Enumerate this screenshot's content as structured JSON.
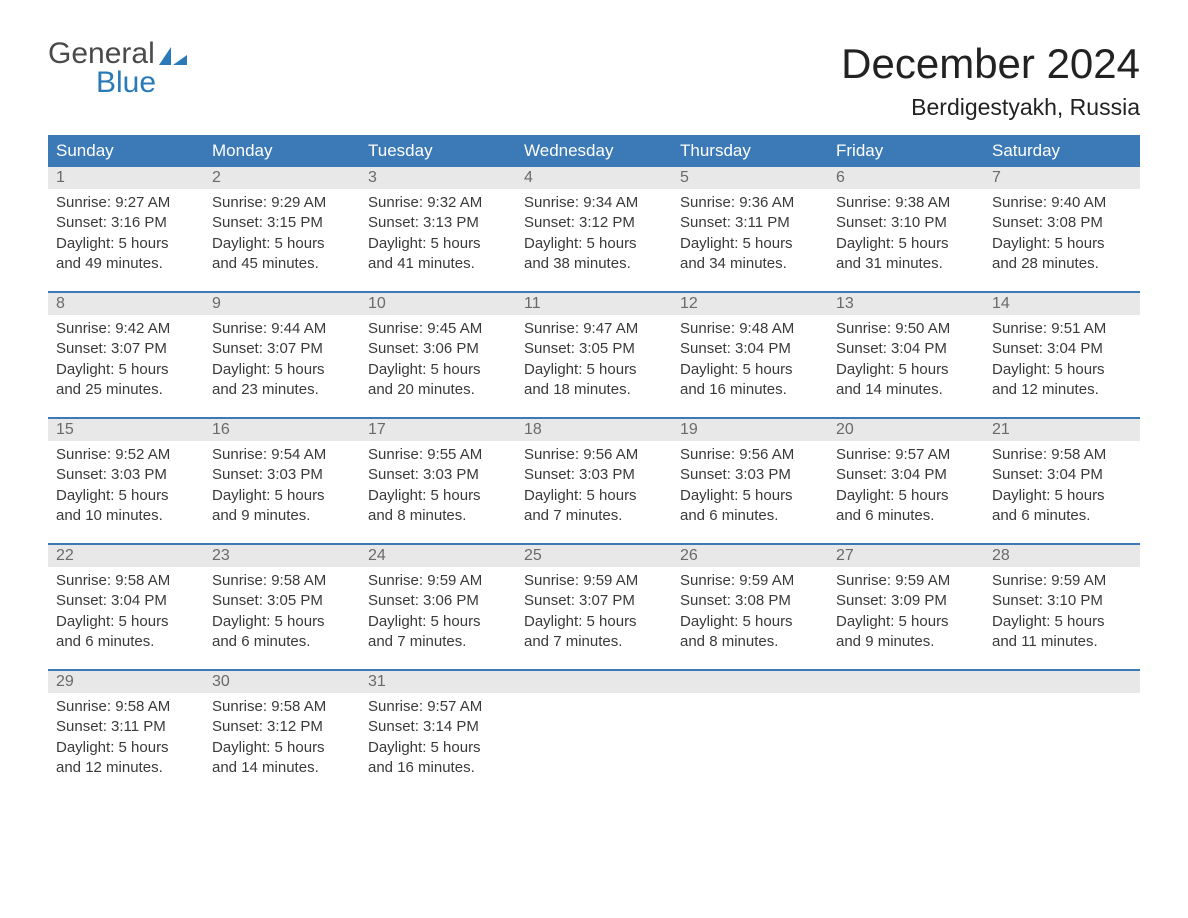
{
  "logo": {
    "line1": "General",
    "line2": "Blue",
    "icon_color": "#2b7ab8"
  },
  "title": "December 2024",
  "location": "Berdigestyakh, Russia",
  "colors": {
    "header_bg": "#3b79b7",
    "header_text": "#ffffff",
    "daynum_bg": "#e8e8e8",
    "daynum_text": "#6a6a6a",
    "body_text": "#3a3a3a",
    "week_divider": "#3b79b7",
    "page_bg": "#ffffff"
  },
  "typography": {
    "title_fontsize": 42,
    "location_fontsize": 23,
    "dayheader_fontsize": 17,
    "daynum_fontsize": 16,
    "body_fontsize": 15,
    "font_family": "Arial"
  },
  "day_headers": [
    "Sunday",
    "Monday",
    "Tuesday",
    "Wednesday",
    "Thursday",
    "Friday",
    "Saturday"
  ],
  "weeks": [
    [
      {
        "n": "1",
        "sr": "Sunrise: 9:27 AM",
        "ss": "Sunset: 3:16 PM",
        "d1": "Daylight: 5 hours",
        "d2": "and 49 minutes."
      },
      {
        "n": "2",
        "sr": "Sunrise: 9:29 AM",
        "ss": "Sunset: 3:15 PM",
        "d1": "Daylight: 5 hours",
        "d2": "and 45 minutes."
      },
      {
        "n": "3",
        "sr": "Sunrise: 9:32 AM",
        "ss": "Sunset: 3:13 PM",
        "d1": "Daylight: 5 hours",
        "d2": "and 41 minutes."
      },
      {
        "n": "4",
        "sr": "Sunrise: 9:34 AM",
        "ss": "Sunset: 3:12 PM",
        "d1": "Daylight: 5 hours",
        "d2": "and 38 minutes."
      },
      {
        "n": "5",
        "sr": "Sunrise: 9:36 AM",
        "ss": "Sunset: 3:11 PM",
        "d1": "Daylight: 5 hours",
        "d2": "and 34 minutes."
      },
      {
        "n": "6",
        "sr": "Sunrise: 9:38 AM",
        "ss": "Sunset: 3:10 PM",
        "d1": "Daylight: 5 hours",
        "d2": "and 31 minutes."
      },
      {
        "n": "7",
        "sr": "Sunrise: 9:40 AM",
        "ss": "Sunset: 3:08 PM",
        "d1": "Daylight: 5 hours",
        "d2": "and 28 minutes."
      }
    ],
    [
      {
        "n": "8",
        "sr": "Sunrise: 9:42 AM",
        "ss": "Sunset: 3:07 PM",
        "d1": "Daylight: 5 hours",
        "d2": "and 25 minutes."
      },
      {
        "n": "9",
        "sr": "Sunrise: 9:44 AM",
        "ss": "Sunset: 3:07 PM",
        "d1": "Daylight: 5 hours",
        "d2": "and 23 minutes."
      },
      {
        "n": "10",
        "sr": "Sunrise: 9:45 AM",
        "ss": "Sunset: 3:06 PM",
        "d1": "Daylight: 5 hours",
        "d2": "and 20 minutes."
      },
      {
        "n": "11",
        "sr": "Sunrise: 9:47 AM",
        "ss": "Sunset: 3:05 PM",
        "d1": "Daylight: 5 hours",
        "d2": "and 18 minutes."
      },
      {
        "n": "12",
        "sr": "Sunrise: 9:48 AM",
        "ss": "Sunset: 3:04 PM",
        "d1": "Daylight: 5 hours",
        "d2": "and 16 minutes."
      },
      {
        "n": "13",
        "sr": "Sunrise: 9:50 AM",
        "ss": "Sunset: 3:04 PM",
        "d1": "Daylight: 5 hours",
        "d2": "and 14 minutes."
      },
      {
        "n": "14",
        "sr": "Sunrise: 9:51 AM",
        "ss": "Sunset: 3:04 PM",
        "d1": "Daylight: 5 hours",
        "d2": "and 12 minutes."
      }
    ],
    [
      {
        "n": "15",
        "sr": "Sunrise: 9:52 AM",
        "ss": "Sunset: 3:03 PM",
        "d1": "Daylight: 5 hours",
        "d2": "and 10 minutes."
      },
      {
        "n": "16",
        "sr": "Sunrise: 9:54 AM",
        "ss": "Sunset: 3:03 PM",
        "d1": "Daylight: 5 hours",
        "d2": "and 9 minutes."
      },
      {
        "n": "17",
        "sr": "Sunrise: 9:55 AM",
        "ss": "Sunset: 3:03 PM",
        "d1": "Daylight: 5 hours",
        "d2": "and 8 minutes."
      },
      {
        "n": "18",
        "sr": "Sunrise: 9:56 AM",
        "ss": "Sunset: 3:03 PM",
        "d1": "Daylight: 5 hours",
        "d2": "and 7 minutes."
      },
      {
        "n": "19",
        "sr": "Sunrise: 9:56 AM",
        "ss": "Sunset: 3:03 PM",
        "d1": "Daylight: 5 hours",
        "d2": "and 6 minutes."
      },
      {
        "n": "20",
        "sr": "Sunrise: 9:57 AM",
        "ss": "Sunset: 3:04 PM",
        "d1": "Daylight: 5 hours",
        "d2": "and 6 minutes."
      },
      {
        "n": "21",
        "sr": "Sunrise: 9:58 AM",
        "ss": "Sunset: 3:04 PM",
        "d1": "Daylight: 5 hours",
        "d2": "and 6 minutes."
      }
    ],
    [
      {
        "n": "22",
        "sr": "Sunrise: 9:58 AM",
        "ss": "Sunset: 3:04 PM",
        "d1": "Daylight: 5 hours",
        "d2": "and 6 minutes."
      },
      {
        "n": "23",
        "sr": "Sunrise: 9:58 AM",
        "ss": "Sunset: 3:05 PM",
        "d1": "Daylight: 5 hours",
        "d2": "and 6 minutes."
      },
      {
        "n": "24",
        "sr": "Sunrise: 9:59 AM",
        "ss": "Sunset: 3:06 PM",
        "d1": "Daylight: 5 hours",
        "d2": "and 7 minutes."
      },
      {
        "n": "25",
        "sr": "Sunrise: 9:59 AM",
        "ss": "Sunset: 3:07 PM",
        "d1": "Daylight: 5 hours",
        "d2": "and 7 minutes."
      },
      {
        "n": "26",
        "sr": "Sunrise: 9:59 AM",
        "ss": "Sunset: 3:08 PM",
        "d1": "Daylight: 5 hours",
        "d2": "and 8 minutes."
      },
      {
        "n": "27",
        "sr": "Sunrise: 9:59 AM",
        "ss": "Sunset: 3:09 PM",
        "d1": "Daylight: 5 hours",
        "d2": "and 9 minutes."
      },
      {
        "n": "28",
        "sr": "Sunrise: 9:59 AM",
        "ss": "Sunset: 3:10 PM",
        "d1": "Daylight: 5 hours",
        "d2": "and 11 minutes."
      }
    ],
    [
      {
        "n": "29",
        "sr": "Sunrise: 9:58 AM",
        "ss": "Sunset: 3:11 PM",
        "d1": "Daylight: 5 hours",
        "d2": "and 12 minutes."
      },
      {
        "n": "30",
        "sr": "Sunrise: 9:58 AM",
        "ss": "Sunset: 3:12 PM",
        "d1": "Daylight: 5 hours",
        "d2": "and 14 minutes."
      },
      {
        "n": "31",
        "sr": "Sunrise: 9:57 AM",
        "ss": "Sunset: 3:14 PM",
        "d1": "Daylight: 5 hours",
        "d2": "and 16 minutes."
      },
      {
        "empty": true
      },
      {
        "empty": true
      },
      {
        "empty": true
      },
      {
        "empty": true
      }
    ]
  ]
}
